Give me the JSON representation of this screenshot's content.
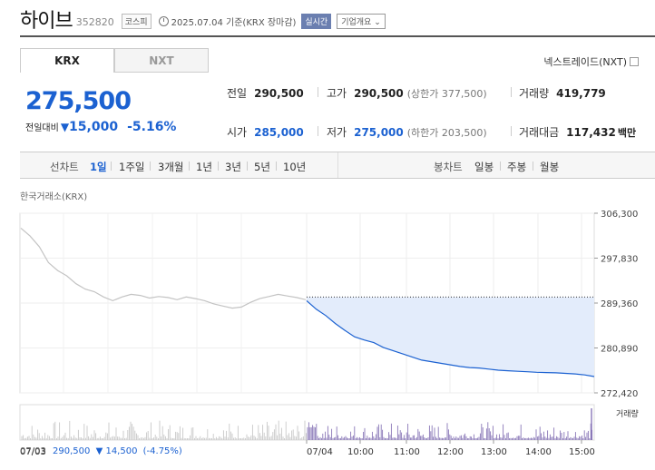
{
  "header": {
    "company_name": "하이브",
    "stock_code": "352820",
    "market": "코스피",
    "base_date": "2025.07.04 기준(KRX 장마감)",
    "realtime": "실시간",
    "company_info": "기업개요"
  },
  "tabs": {
    "krx": "KRX",
    "nxt": "NXT"
  },
  "nxt_link": "넥스트레이드(NXT)",
  "price": {
    "current": "275,500",
    "change_label": "전일대비",
    "change_arrow": "▼",
    "change_amount": "15,000",
    "change_rate": "-5.16%"
  },
  "quote": {
    "prev_close_label": "전일",
    "prev_close": "290,500",
    "high_label": "고가",
    "high": "290,500",
    "upper_limit": "(상한가 377,500)",
    "volume_label": "거래량",
    "volume": "419,779",
    "open_label": "시가",
    "open": "285,000",
    "low_label": "저가",
    "low": "275,000",
    "lower_limit": "(하한가 203,500)",
    "value_label": "거래대금",
    "value": "117,432",
    "value_unit": "백만"
  },
  "period": {
    "line_label": "선차트",
    "line_items": [
      "1일",
      "1주일",
      "3개월",
      "1년",
      "3년",
      "5년",
      "10년"
    ],
    "active_index": 0,
    "candle_label": "봉차트",
    "candle_items": [
      "일봉",
      "주봉",
      "월봉"
    ]
  },
  "chart_source": "한국거래소(KRX)",
  "chart_data": {
    "type": "line",
    "y_ticks": [
      "306,300",
      "297,830",
      "289,360",
      "280,890",
      "272,420"
    ],
    "y_tick_values": [
      306300,
      297830,
      289360,
      280890,
      272420
    ],
    "ylim": [
      272420,
      306300
    ],
    "x_ticks": [
      "07/04",
      "10:00",
      "11:00",
      "12:00",
      "13:00",
      "14:00",
      "15:00"
    ],
    "prev_close_reference": 290500,
    "volume_label": "거래량",
    "series": [
      {
        "name": "07/03",
        "values": [
          303500,
          302000,
          300000,
          297000,
          295500,
          294500,
          293000,
          292000,
          291500,
          290500,
          289800,
          290500,
          291000,
          290800,
          290300,
          290600,
          290400,
          290000,
          290500,
          290200,
          289800,
          289200,
          288800,
          288400,
          288600,
          289500,
          290200,
          290600,
          291000,
          290700,
          290400,
          290000
        ]
      },
      {
        "name": "07/04",
        "values": [
          289800,
          288200,
          287000,
          285500,
          284200,
          283000,
          282400,
          281900,
          281000,
          280400,
          279800,
          279200,
          278600,
          278300,
          278000,
          277700,
          277400,
          277200,
          277100,
          276900,
          276700,
          276600,
          276500,
          276400,
          276300,
          276250,
          276200,
          276100,
          276000,
          275800,
          275500
        ]
      }
    ],
    "footer": {
      "date": "07/03",
      "close": "290,500",
      "arrow": "▼",
      "change": "14,500",
      "rate": "(-4.75%)"
    }
  }
}
